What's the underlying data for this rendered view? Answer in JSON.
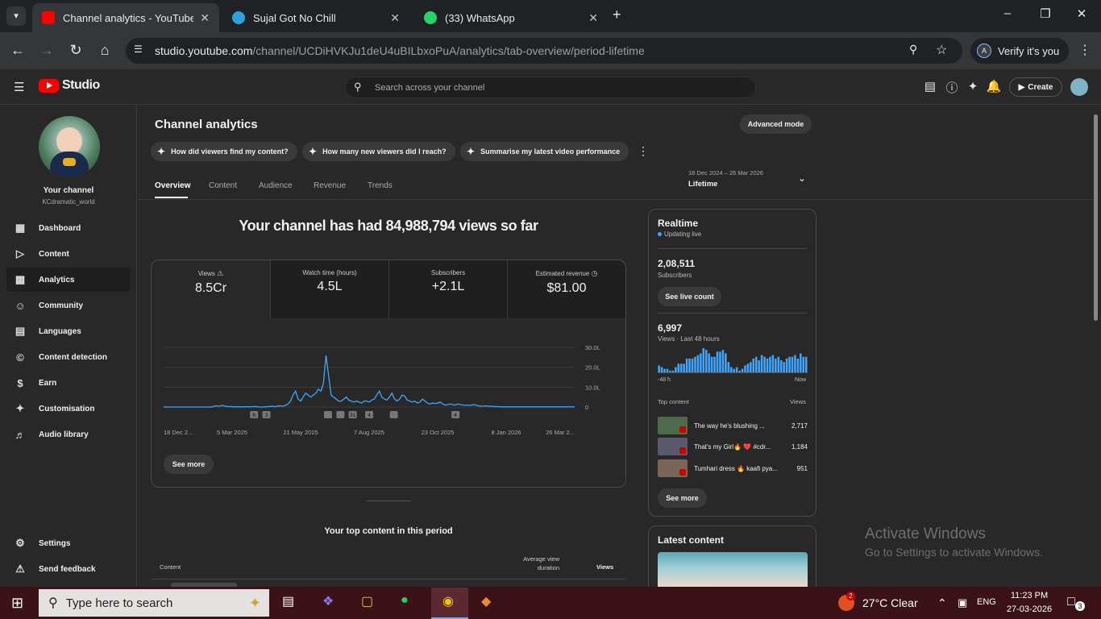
{
  "browser": {
    "tabs": [
      {
        "title": "Channel analytics - YouTube Studio",
        "favicon_color": "#ff0000",
        "active": true
      },
      {
        "title": "Sujal Got No Chill",
        "favicon_color": "#2aa3e0",
        "active": false
      },
      {
        "title": "(33) WhatsApp",
        "favicon_color": "#25d366",
        "active": false
      }
    ],
    "url_host": "studio.youtube.com",
    "url_path": "/channel/UCDiHVKJu1deU4uBILbxoPuA/analytics/tab-overview/period-lifetime",
    "verify_label": "Verify it's you",
    "profile_initial": "A"
  },
  "studio": {
    "logo": "Studio",
    "search_placeholder": "Search across your channel",
    "create_label": "Create"
  },
  "channel": {
    "label": "Your channel",
    "handle": "KCdramatic_world"
  },
  "sidebar": {
    "items": [
      {
        "label": "Dashboard",
        "icon": "dashboard-icon"
      },
      {
        "label": "Content",
        "icon": "content-icon"
      },
      {
        "label": "Analytics",
        "icon": "analytics-icon"
      },
      {
        "label": "Community",
        "icon": "community-icon"
      },
      {
        "label": "Languages",
        "icon": "languages-icon"
      },
      {
        "label": "Content detection",
        "icon": "copyright-icon"
      },
      {
        "label": "Earn",
        "icon": "dollar-icon"
      },
      {
        "label": "Customisation",
        "icon": "wand-icon"
      },
      {
        "label": "Audio library",
        "icon": "audio-library-icon"
      }
    ],
    "settings": "Settings",
    "feedback": "Send feedback"
  },
  "analytics": {
    "title": "Channel analytics",
    "advanced_mode": "Advanced mode",
    "chips": [
      "How did viewers find my content?",
      "How many new viewers did I reach?",
      "Summarise my latest video performance"
    ],
    "tabs": [
      "Overview",
      "Content",
      "Audience",
      "Revenue",
      "Trends"
    ],
    "period_range": "18 Dec 2024 – 26 Mar 2026",
    "period_label": "Lifetime",
    "headline": "Your channel has had 84,988,794 views so far",
    "metrics": [
      {
        "label": "Views",
        "value": "8.5Cr"
      },
      {
        "label": "Watch time (hours)",
        "value": "4.5L"
      },
      {
        "label": "Subscribers",
        "value": "+2.1L"
      },
      {
        "label": "Estimated revenue",
        "value": "$81.00"
      }
    ],
    "see_more": "See more",
    "top_content_title": "Your top content in this period",
    "col_content": "Content",
    "col_avg_duration": "Average view duration",
    "col_views": "Views"
  },
  "chart_data": {
    "type": "line",
    "x_labels": [
      "18 Dec 2...",
      "5 Mar 2025",
      "21 May 2025",
      "7 Aug 2025",
      "23 Oct 2025",
      "8 Jan 2026",
      "26 Mar 2..."
    ],
    "y_ticks": [
      "30.0L",
      "20.0L",
      "10.0L",
      "0"
    ],
    "ylim": [
      0,
      3000000
    ],
    "line_color": "#3ea6ff",
    "values": [
      0,
      0,
      0,
      0,
      0,
      0,
      0,
      0,
      0,
      0,
      0,
      0,
      0,
      0,
      0,
      0,
      0,
      0,
      0,
      0,
      50000,
      60000,
      40000,
      80000,
      50000,
      30000,
      20000,
      20000,
      10000,
      20000,
      10000,
      10000,
      10000,
      20000,
      10000,
      20000,
      30000,
      10000,
      0,
      0,
      10000,
      20000,
      30000,
      40000,
      20000,
      50000,
      60000,
      40000,
      80000,
      150000,
      300000,
      600000,
      800000,
      400000,
      300000,
      500000,
      700000,
      600000,
      500000,
      600000,
      700000,
      900000,
      800000,
      1200000,
      2600000,
      1600000,
      600000,
      500000,
      400000,
      300000,
      300000,
      400000,
      500000,
      350000,
      300000,
      250000,
      300000,
      250000,
      200000,
      300000,
      300000,
      250000,
      350000,
      400000,
      600000,
      800000,
      500000,
      400000,
      350000,
      500000,
      700000,
      400000,
      300000,
      400000,
      600000,
      550000,
      350000,
      300000,
      250000,
      300000,
      200000,
      250000,
      400000,
      300000,
      200000,
      150000,
      200000,
      180000,
      200000,
      250000,
      150000,
      100000,
      120000,
      150000,
      120000,
      100000,
      150000,
      120000,
      100000,
      80000,
      100000,
      80000,
      120000,
      100000,
      60000,
      50000,
      40000,
      60000,
      50000,
      40000,
      30000,
      20000,
      20000,
      10000,
      10000,
      10000,
      10000,
      10000,
      10000,
      10000,
      10000,
      10000,
      10000,
      10000,
      10000,
      10000,
      10000,
      10000,
      10000,
      10000,
      10000,
      10000,
      10000,
      10000,
      10000,
      10000,
      10000,
      10000,
      10000,
      10000,
      10000,
      10000,
      10000
    ],
    "markers": [
      "6",
      "3",
      "",
      "",
      "31",
      "4",
      "",
      "4"
    ]
  },
  "realtime": {
    "title": "Realtime",
    "updating": "Updating live",
    "subs_value": "2,08,511",
    "subs_label": "Subscribers",
    "see_live_count": "See live count",
    "views_value": "6,997",
    "views_label": "Views · Last 48 hours",
    "bars": [
      4,
      3,
      2,
      2,
      1,
      1,
      3,
      5,
      5,
      5,
      8,
      8,
      8,
      9,
      10,
      11,
      14,
      13,
      11,
      9,
      9,
      12,
      12,
      13,
      11,
      6,
      3,
      2,
      3,
      1,
      2,
      4,
      5,
      6,
      8,
      9,
      7,
      10,
      9,
      8,
      9,
      10,
      8,
      9,
      7,
      6,
      8,
      9,
      9,
      10,
      8,
      11,
      9,
      9
    ],
    "bar_color": "#3ea6ff",
    "left_label": "-48 h",
    "right_label": "Now",
    "top_content_label": "Top content",
    "views_col": "Views",
    "top_content": [
      {
        "title": "The way he's blushing ...",
        "views": "2,717"
      },
      {
        "title": "That's my Girl🔥 ❤️  #cdr...",
        "views": "1,184"
      },
      {
        "title": "Tumhari dress 🔥 kaafi pya...",
        "views": "951"
      }
    ],
    "see_more": "See more"
  },
  "latest": {
    "title": "Latest content"
  },
  "watermark": {
    "line1": "Activate Windows",
    "line2": "Go to Settings to activate Windows."
  },
  "taskbar": {
    "search_placeholder": "Type here to search",
    "weather": "27°C  Clear",
    "weather_badge": "2",
    "lang": "ENG",
    "time": "11:23 PM",
    "date": "27-03-2026",
    "notif_count": "3"
  }
}
